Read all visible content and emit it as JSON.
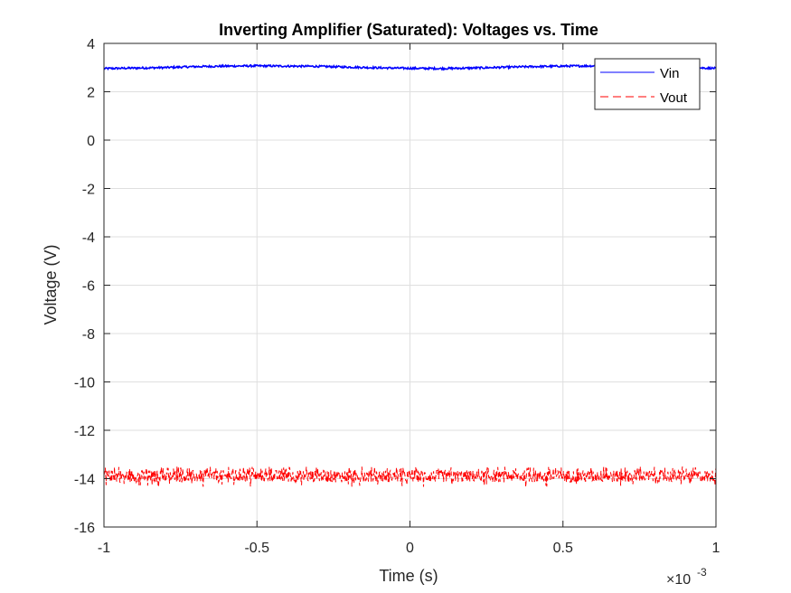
{
  "chart_data": {
    "type": "line",
    "title": "Inverting Amplifier (Saturated): Voltages vs. Time",
    "xlabel": "Time (s)",
    "ylabel": "Voltage (V)",
    "x_exponent_label": "×10",
    "x_exponent_power": "-3",
    "x_tick_scale": 0.001,
    "xlim": [
      -0.001,
      0.001
    ],
    "ylim": [
      -16,
      4
    ],
    "x_ticks": [
      -0.001,
      -0.0005,
      0,
      0.0005,
      0.001
    ],
    "x_tick_labels": [
      "-1",
      "-0.5",
      "0",
      "0.5",
      "1"
    ],
    "y_ticks": [
      -16,
      -14,
      -12,
      -10,
      -8,
      -6,
      -4,
      -2,
      0,
      2,
      4
    ],
    "y_tick_labels": [
      "-16",
      "-14",
      "-12",
      "-10",
      "-8",
      "-6",
      "-4",
      "-2",
      "0",
      "2",
      "4"
    ],
    "grid": true,
    "legend_position": "top-right",
    "series": [
      {
        "name": "Vin",
        "color": "#0000ff",
        "line_style": "solid",
        "x": [
          -0.001,
          -0.0009,
          -0.0008,
          -0.0007,
          -0.0006,
          -0.0005,
          -0.0004,
          -0.0003,
          -0.0002,
          -0.0001,
          0,
          0.0001,
          0.0002,
          0.0003,
          0.0004,
          0.0005,
          0.0006,
          0.0007,
          0.0008,
          0.0009,
          0.001
        ],
        "y": [
          2.96,
          2.98,
          3.0,
          3.04,
          3.06,
          3.07,
          3.06,
          3.05,
          3.02,
          2.99,
          2.97,
          2.96,
          2.98,
          3.01,
          3.04,
          3.06,
          3.07,
          3.06,
          3.04,
          3.0,
          2.97
        ],
        "noise_amplitude": 0.04
      },
      {
        "name": "Vout",
        "color": "#ff0000",
        "line_style": "dashed",
        "x": [
          -0.001,
          -0.0005,
          0,
          0.0005,
          0.001
        ],
        "y": [
          -13.9,
          -13.9,
          -13.9,
          -13.9,
          -13.9
        ],
        "noise_band": [
          -14.15,
          -13.65
        ],
        "noise_spikes": [
          -14.35,
          -13.5
        ]
      }
    ]
  }
}
